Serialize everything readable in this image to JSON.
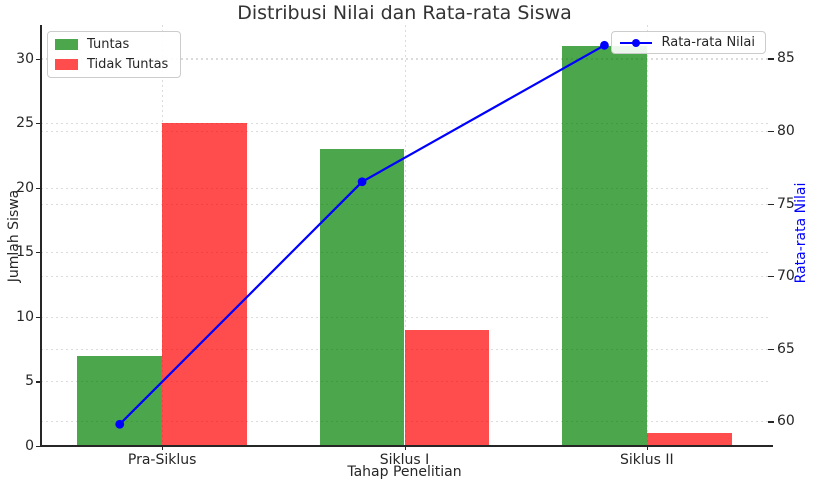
{
  "title": "Distribusi Nilai dan Rata-rata Siswa",
  "chart_data": {
    "type": "bar+line",
    "categories": [
      "Pra-Siklus",
      "Siklus I",
      "Siklus II"
    ],
    "series": [
      {
        "name": "Tuntas",
        "color": "#008000",
        "opacity": 0.7,
        "values": [
          7,
          23,
          31
        ]
      },
      {
        "name": "Tidak Tuntas",
        "color": "#FF0000",
        "opacity": 0.7,
        "values": [
          25,
          9,
          1
        ]
      }
    ],
    "line_series": {
      "name": "Rata-rata Nilai",
      "color": "#0000FF",
      "axis": "right",
      "values": [
        59.8,
        76.5,
        85.9
      ]
    },
    "xlabel": "Tahap Penelitian",
    "ylabel_left": "Jumlah Siswa",
    "ylabel_right": "Rata-rata Nilai",
    "y_left": {
      "ticks": [
        0,
        5,
        10,
        15,
        20,
        25,
        30
      ],
      "min": 0,
      "max": 32.6
    },
    "y_right": {
      "ticks": [
        60,
        65,
        70,
        75,
        80,
        85
      ],
      "min": 58.3,
      "max": 87.3
    },
    "grid": true,
    "legend_bars_position": "upper left",
    "legend_line_position": "upper right",
    "layout": {
      "grid_color": "#DBDBDB",
      "spine_color": "#262626",
      "text_color": "#262626",
      "title_color": "#333333",
      "right_axis_label_color": "#0000FF",
      "bar_width_fraction": 0.35
    }
  }
}
